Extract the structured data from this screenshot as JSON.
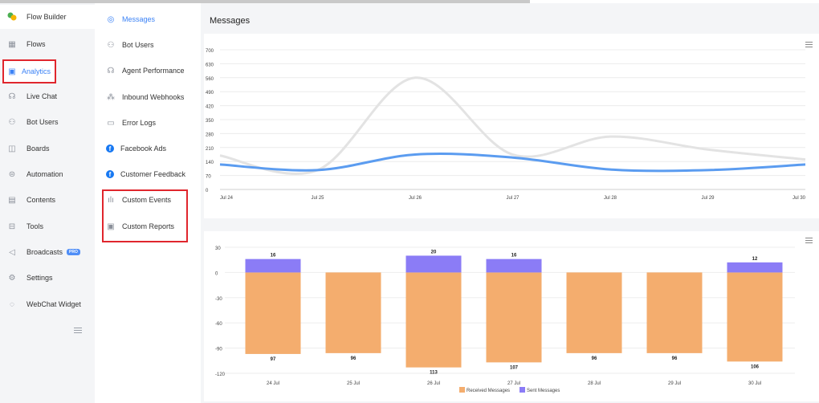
{
  "sidebar": {
    "items": [
      {
        "label": "Flow Builder",
        "icon": "flow-builder-icon"
      },
      {
        "label": "Flows",
        "icon": "flows-icon"
      },
      {
        "label": "Analytics",
        "icon": "analytics-icon"
      },
      {
        "label": "Live Chat",
        "icon": "live-chat-icon"
      },
      {
        "label": "Bot Users",
        "icon": "bot-users-icon"
      },
      {
        "label": "Boards",
        "icon": "boards-icon"
      },
      {
        "label": "Automation",
        "icon": "automation-icon"
      },
      {
        "label": "Contents",
        "icon": "contents-icon"
      },
      {
        "label": "Tools",
        "icon": "tools-icon"
      },
      {
        "label": "Broadcasts",
        "icon": "broadcasts-icon",
        "badge": "PRO"
      },
      {
        "label": "Settings",
        "icon": "settings-icon"
      },
      {
        "label": "WebChat Widget",
        "icon": "webchat-icon"
      }
    ]
  },
  "subnav": {
    "items": [
      {
        "label": "Messages",
        "icon": "messages-icon"
      },
      {
        "label": "Bot Users",
        "icon": "bot-users-icon"
      },
      {
        "label": "Agent Performance",
        "icon": "headset-icon"
      },
      {
        "label": "Inbound Webhooks",
        "icon": "webhooks-icon"
      },
      {
        "label": "Error Logs",
        "icon": "error-logs-icon"
      },
      {
        "label": "Facebook Ads",
        "icon": "facebook-icon"
      },
      {
        "label": "Customer Feedback",
        "icon": "facebook-icon"
      },
      {
        "label": "Custom Events",
        "icon": "bar-chart-icon"
      },
      {
        "label": "Custom Reports",
        "icon": "report-icon"
      }
    ]
  },
  "page": {
    "title": "Messages"
  },
  "colors": {
    "accent": "#3b82f6",
    "highlight": "#e0262d",
    "received": "#f4ad6e",
    "sent": "#8b7cf6",
    "line_gray": "#e3e3e3",
    "line_blue": "#5b9cf0"
  },
  "chart_data": [
    {
      "type": "line",
      "x": [
        "Jul 24",
        "Jul 25",
        "Jul 26",
        "Jul 27",
        "Jul 28",
        "Jul 29",
        "Jul 30"
      ],
      "series": [
        {
          "values": [
            170,
            97,
            560,
            175,
            265,
            200,
            150
          ]
        },
        {
          "values": [
            125,
            97,
            175,
            160,
            100,
            97,
            125
          ]
        }
      ],
      "ylim": [
        0,
        700
      ],
      "yticks": [
        0,
        70,
        140,
        210,
        280,
        350,
        420,
        490,
        560,
        630,
        700
      ],
      "grid": true
    },
    {
      "type": "bar",
      "categories": [
        "24 Jul",
        "25 Jul",
        "26 Jul",
        "27 Jul",
        "28 Jul",
        "29 Jul",
        "30 Jul"
      ],
      "series": [
        {
          "name": "Received Messages",
          "values": [
            -97,
            -96,
            -113,
            -107,
            -96,
            -96,
            -106
          ],
          "labels": [
            "97",
            "96",
            "113",
            "107",
            "96",
            "96",
            "106"
          ]
        },
        {
          "name": "Sent Messages",
          "values": [
            16,
            0,
            20,
            16,
            0,
            0,
            12
          ],
          "labels": [
            "16",
            "",
            "20",
            "16",
            "",
            "",
            "12"
          ]
        }
      ],
      "ylim": [
        -120,
        30
      ],
      "yticks": [
        30,
        0,
        -30,
        -60,
        -90,
        -120
      ],
      "legend": "bottom-center",
      "stacked": true
    }
  ]
}
